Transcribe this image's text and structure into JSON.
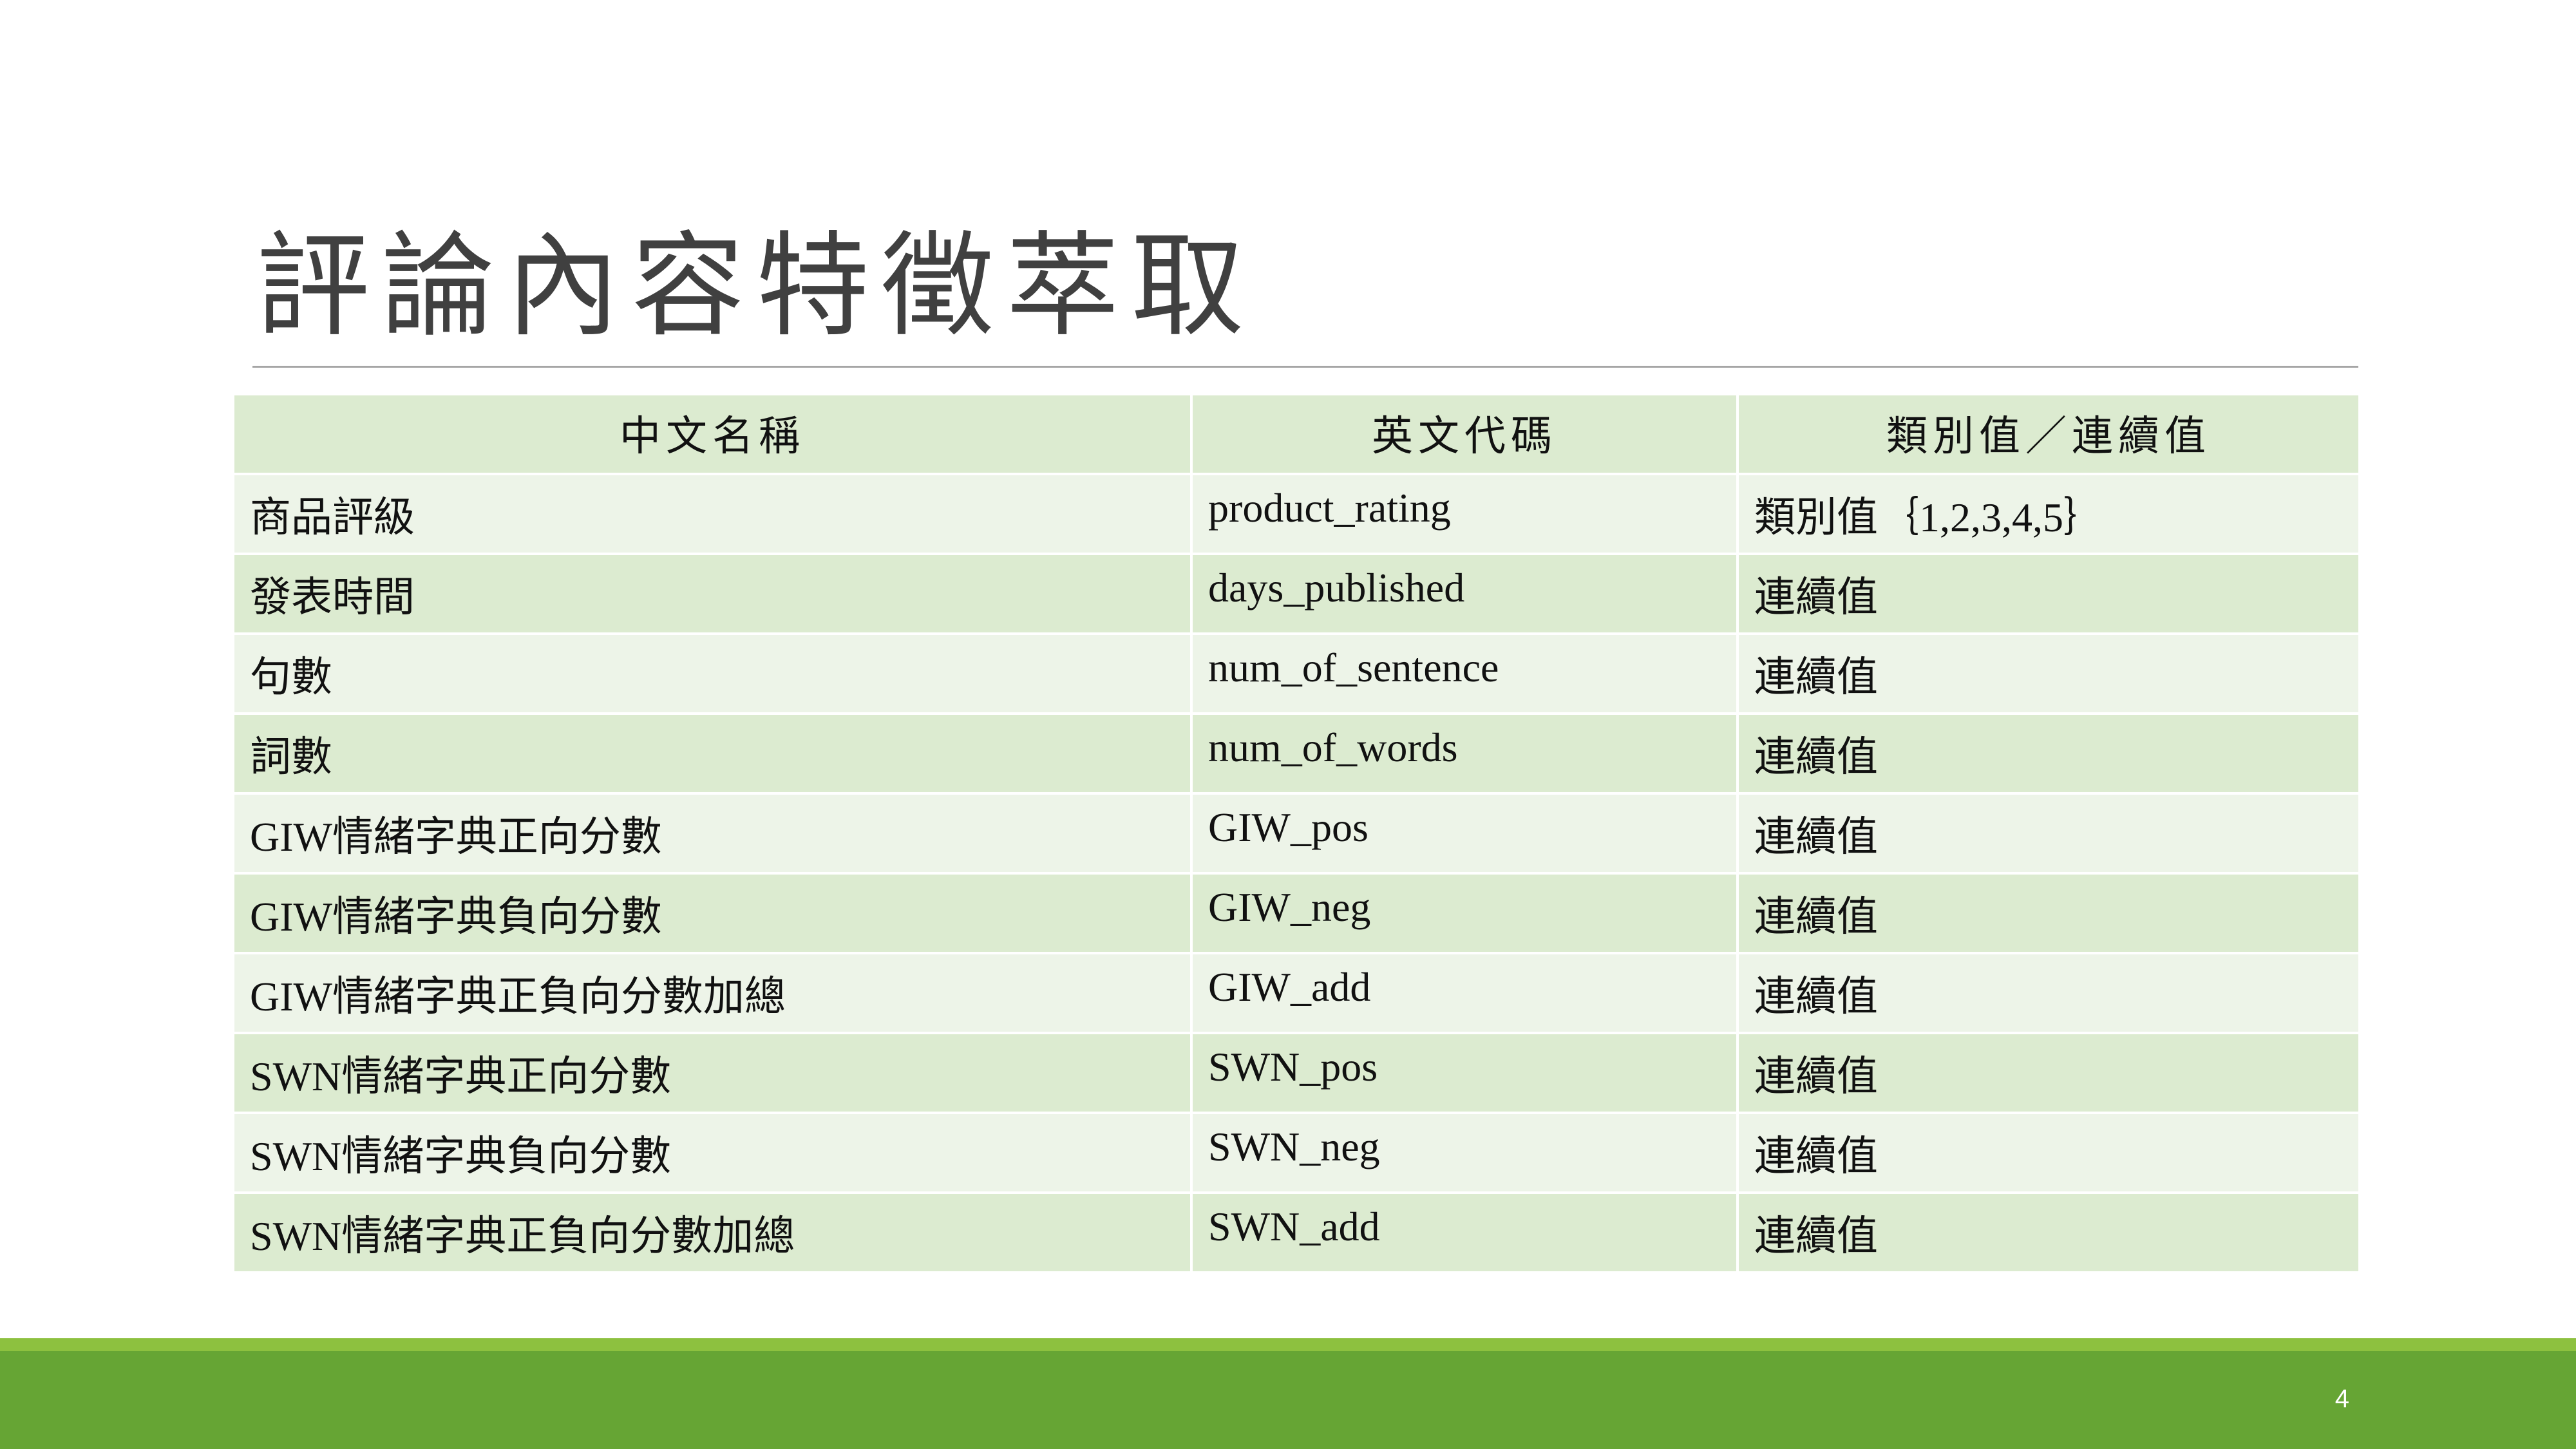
{
  "slide": {
    "title": "評論內容特徵萃取",
    "page_number": "4"
  },
  "table": {
    "headers": [
      "中文名稱",
      "英文代碼",
      "類別值／連續值"
    ],
    "rows": [
      [
        "商品評級",
        "product_rating",
        "類別值｛1,2,3,4,5｝"
      ],
      [
        "發表時間",
        "days_published",
        "連續值"
      ],
      [
        "句數",
        "num_of_sentence",
        "連續值"
      ],
      [
        "詞數",
        "num_of_words",
        "連續值"
      ],
      [
        "GIW情緒字典正向分數",
        "GIW_pos",
        "連續值"
      ],
      [
        "GIW情緒字典負向分數",
        "GIW_neg",
        "連續值"
      ],
      [
        "GIW情緒字典正負向分數加總",
        "GIW_add",
        "連續值"
      ],
      [
        "SWN情緒字典正向分數",
        "SWN_pos",
        "連續值"
      ],
      [
        "SWN情緒字典負向分數",
        "SWN_neg",
        "連續值"
      ],
      [
        "SWN情緒字典正負向分數加總",
        "SWN_add",
        "連續值"
      ]
    ]
  },
  "colors": {
    "header_fill": "#dcebd0",
    "row_light": "#edf4e8",
    "row_dark": "#dcebd0",
    "footer_green": "#66a534",
    "footer_accent": "#8dc13f"
  }
}
